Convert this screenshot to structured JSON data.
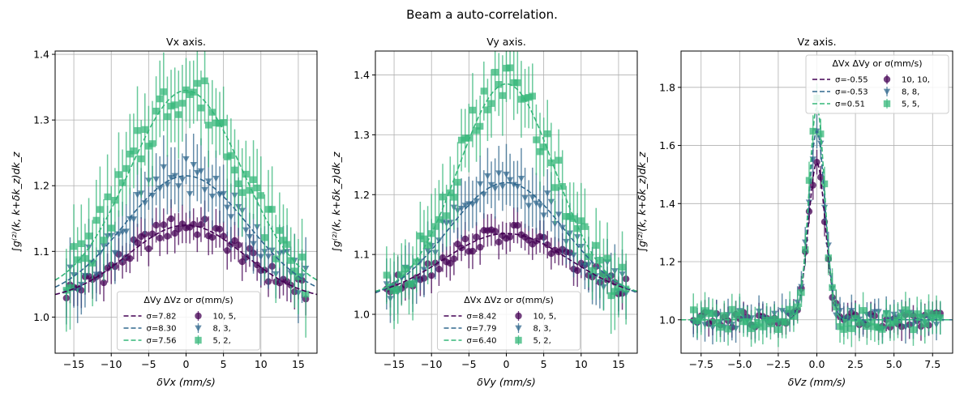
{
  "figure": {
    "suptitle": "Beam a auto-correlation."
  },
  "colors": {
    "s1": "#440154",
    "s2": "#31688e",
    "s3": "#35b779",
    "grid": "#b0b0b0"
  },
  "chart_data": [
    {
      "type": "scatter",
      "title": "Vx axis.",
      "xlabel": "δVx (mm/s)",
      "ylabel": "∫g⁽²⁾(k, k+δk_z)dk_z",
      "xlim": [
        -17.5,
        17.5
      ],
      "ylim": [
        0.945,
        1.405
      ],
      "xticks": [
        -15,
        -10,
        -5,
        0,
        5,
        10,
        15
      ],
      "xtick_labels": [
        "−15",
        "−10",
        "−5",
        "0",
        "5",
        "10",
        "15"
      ],
      "yticks": [
        1.0,
        1.1,
        1.2,
        1.3,
        1.4
      ],
      "ytick_labels": [
        "1.0",
        "1.1",
        "1.2",
        "1.3",
        "1.4"
      ],
      "grid": true,
      "legend_placement": "lower-center",
      "legend_title": "ΔVy  ΔVz  or σ(mm/s)",
      "fits": [
        {
          "label": "σ=7.82",
          "center": 0,
          "amp": 0.115,
          "sigma": 7.82,
          "base": 1.025
        },
        {
          "label": "σ=8.30",
          "center": 0,
          "amp": 0.19,
          "sigma": 8.3,
          "base": 1.025
        },
        {
          "label": "σ=7.56",
          "center": 0,
          "amp": 0.31,
          "sigma": 7.56,
          "base": 1.035
        }
      ],
      "series": [
        {
          "name": "10, 5,",
          "marker": "circle",
          "center": 0,
          "amp": 0.115,
          "sigma": 7.82,
          "base": 1.025,
          "x_min": -16,
          "x_max": 16,
          "step": 0.5,
          "err": 0.018
        },
        {
          "name": "8, 3,",
          "marker": "triangle",
          "center": 0,
          "amp": 0.19,
          "sigma": 8.3,
          "base": 1.025,
          "x_min": -16,
          "x_max": 16,
          "step": 0.5,
          "err": 0.03
        },
        {
          "name": "5, 2,",
          "marker": "square",
          "center": 0,
          "amp": 0.31,
          "sigma": 7.56,
          "base": 1.035,
          "x_min": -16,
          "x_max": 16,
          "step": 0.5,
          "err": 0.04
        }
      ]
    },
    {
      "type": "scatter",
      "title": "Vy axis.",
      "xlabel": "δVy (mm/s)",
      "ylabel": "∫g⁽²⁾(k, k+δk_z)dk_z",
      "xlim": [
        -17.5,
        17.5
      ],
      "ylim": [
        0.935,
        1.44
      ],
      "xticks": [
        -15,
        -10,
        -5,
        0,
        5,
        10,
        15
      ],
      "xtick_labels": [
        "−15",
        "−10",
        "−5",
        "0",
        "5",
        "10",
        "15"
      ],
      "yticks": [
        1.0,
        1.1,
        1.2,
        1.3,
        1.4
      ],
      "ytick_labels": [
        "1.0",
        "1.1",
        "1.2",
        "1.3",
        "1.4"
      ],
      "grid": true,
      "legend_placement": "lower-center",
      "legend_title": "ΔVx  ΔVz  or σ(mm/s)",
      "fits": [
        {
          "label": "σ=8.42",
          "center": 0,
          "amp": 0.11,
          "sigma": 8.42,
          "base": 1.025
        },
        {
          "label": "σ=7.79",
          "center": 0,
          "amp": 0.2,
          "sigma": 7.79,
          "base": 1.02
        },
        {
          "label": "σ=6.40",
          "center": 0,
          "amp": 0.355,
          "sigma": 6.4,
          "base": 1.03
        }
      ],
      "series": [
        {
          "name": "10, 5,",
          "marker": "circle",
          "center": 0,
          "amp": 0.11,
          "sigma": 8.42,
          "base": 1.025,
          "x_min": -16,
          "x_max": 16,
          "step": 0.5,
          "err": 0.018
        },
        {
          "name": "8, 3,",
          "marker": "triangle",
          "center": 0,
          "amp": 0.2,
          "sigma": 7.79,
          "base": 1.02,
          "x_min": -16,
          "x_max": 16,
          "step": 0.5,
          "err": 0.03
        },
        {
          "name": "5, 2,",
          "marker": "square",
          "center": 0,
          "amp": 0.355,
          "sigma": 6.4,
          "base": 1.03,
          "x_min": -16,
          "x_max": 16,
          "step": 0.5,
          "err": 0.04
        }
      ]
    },
    {
      "type": "scatter",
      "title": "Vz axis.",
      "xlabel": "δVz (mm/s)",
      "ylabel": "∫g⁽²⁾(k, k+δk_z)dk_z",
      "xlim": [
        -8.8,
        8.8
      ],
      "ylim": [
        0.885,
        1.925
      ],
      "xticks": [
        -7.5,
        -5,
        -2.5,
        0,
        2.5,
        5,
        7.5
      ],
      "xtick_labels": [
        "−7.5",
        "−5.0",
        "−2.5",
        "0.0",
        "2.5",
        "5.0",
        "7.5"
      ],
      "yticks": [
        1.0,
        1.2,
        1.4,
        1.6,
        1.8
      ],
      "ytick_labels": [
        "1.0",
        "1.2",
        "1.4",
        "1.6",
        "1.8"
      ],
      "grid": true,
      "legend_placement": "upper-right",
      "legend_title": "ΔVx  ΔVy  or σ(mm/s)",
      "fits": [
        {
          "label": "σ=-0.55",
          "center": 0,
          "amp": 0.54,
          "sigma": 0.55,
          "base": 1.0
        },
        {
          "label": "σ=-0.53",
          "center": 0,
          "amp": 0.65,
          "sigma": 0.53,
          "base": 1.0
        },
        {
          "label": "σ=0.51",
          "center": 0,
          "amp": 0.73,
          "sigma": 0.51,
          "base": 1.0
        }
      ],
      "series": [
        {
          "name": "10, 10,",
          "marker": "circle",
          "center": 0,
          "amp": 0.54,
          "sigma": 0.55,
          "base": 1.0,
          "x_min": -8,
          "x_max": 8,
          "step": 0.25,
          "err": 0.03
        },
        {
          "name": "8, 8,",
          "marker": "triangle",
          "center": 0,
          "amp": 0.65,
          "sigma": 0.53,
          "base": 1.0,
          "x_min": -8,
          "x_max": 8,
          "step": 0.25,
          "err": 0.035
        },
        {
          "name": "5, 5,",
          "marker": "square",
          "center": 0,
          "amp": 0.73,
          "sigma": 0.51,
          "base": 1.0,
          "x_min": -8,
          "x_max": 8,
          "step": 0.25,
          "err": 0.04
        }
      ]
    }
  ]
}
